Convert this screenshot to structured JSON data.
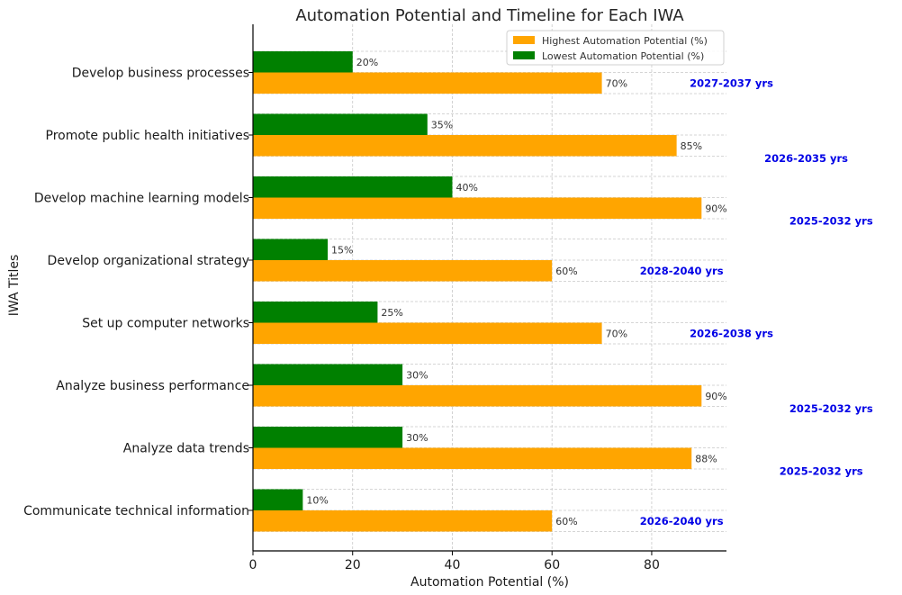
{
  "chart_data": {
    "type": "bar",
    "orientation": "horizontal",
    "title": "Automation Potential and Timeline for Each IWA",
    "xlabel": "Automation Potential (%)",
    "ylabel": "IWA Titles",
    "xlim": [
      0,
      95
    ],
    "xticks": [
      0,
      20,
      40,
      60,
      80
    ],
    "grid": true,
    "legend_position": "top-right",
    "categories": [
      "Develop business processes",
      "Promote public health initiatives",
      "Develop machine learning models",
      "Develop organizational strategy",
      "Set up computer networks",
      "Analyze business performance",
      "Analyze data trends",
      "Communicate technical information"
    ],
    "series": [
      {
        "name": "Highest Automation Potential (%)",
        "color": "#ffa500",
        "values": [
          70,
          85,
          90,
          60,
          70,
          90,
          88,
          60
        ],
        "labels": [
          "70%",
          "85%",
          "90%",
          "60%",
          "70%",
          "90%",
          "88%",
          "60%"
        ]
      },
      {
        "name": "Lowest Automation Potential (%)",
        "color": "#008000",
        "values": [
          20,
          35,
          40,
          15,
          25,
          30,
          30,
          10
        ],
        "labels": [
          "20%",
          "35%",
          "40%",
          "15%",
          "25%",
          "30%",
          "30%",
          "10%"
        ]
      }
    ],
    "timelines": [
      "2027-2037 yrs",
      "2026-2035 yrs",
      "2025-2032 yrs",
      "2028-2040 yrs",
      "2026-2038 yrs",
      "2025-2032 yrs",
      "2025-2032 yrs",
      "2026-2040 yrs"
    ],
    "timeline_color": "#0000e6"
  }
}
